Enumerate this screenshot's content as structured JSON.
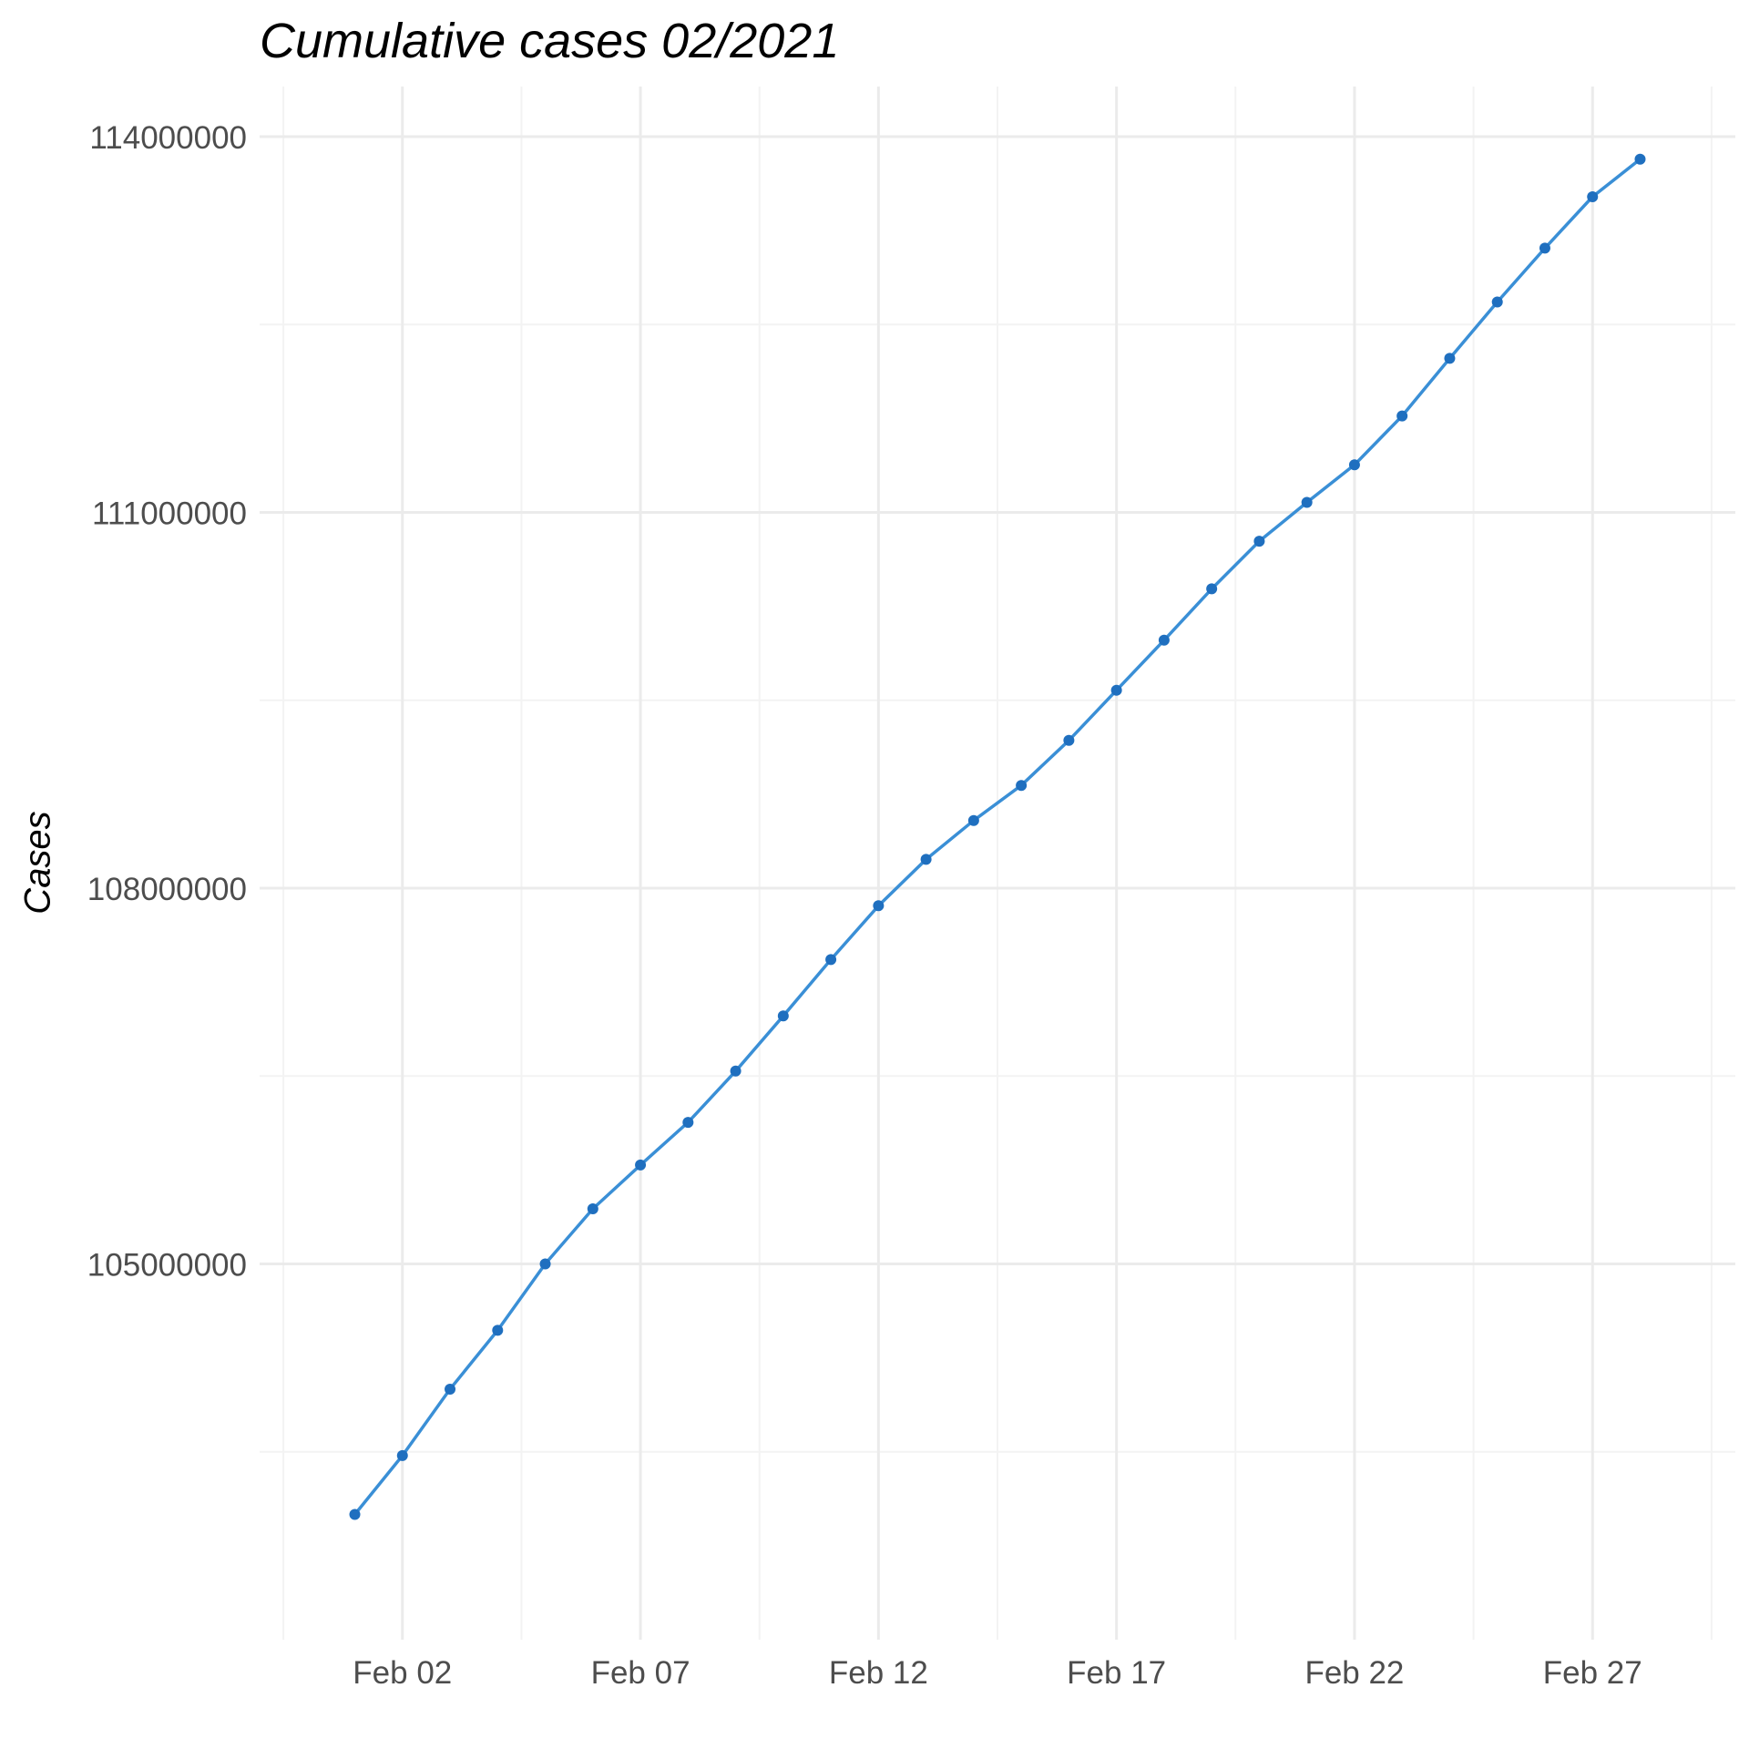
{
  "chart_data": {
    "type": "line",
    "title": "Cumulative cases 02/2021",
    "xlabel": "",
    "ylabel": "Cases",
    "x": [
      "2021-02-01",
      "2021-02-02",
      "2021-02-03",
      "2021-02-04",
      "2021-02-05",
      "2021-02-06",
      "2021-02-07",
      "2021-02-08",
      "2021-02-09",
      "2021-02-10",
      "2021-02-11",
      "2021-02-12",
      "2021-02-13",
      "2021-02-14",
      "2021-02-15",
      "2021-02-16",
      "2021-02-17",
      "2021-02-18",
      "2021-02-19",
      "2021-02-20",
      "2021-02-21",
      "2021-02-22",
      "2021-02-23",
      "2021-02-24",
      "2021-02-25",
      "2021-02-26",
      "2021-02-27",
      "2021-02-28"
    ],
    "series": [
      {
        "name": "",
        "values": [
          103000000,
          103470000,
          104000000,
          104470000,
          105000000,
          105440000,
          105790000,
          106130000,
          106540000,
          106980000,
          107430000,
          107860000,
          108230000,
          108540000,
          108820000,
          109180000,
          109580000,
          109980000,
          110390000,
          110770000,
          111080000,
          111380000,
          111770000,
          112230000,
          112680000,
          113110000,
          113520000,
          113820000
        ]
      }
    ],
    "xlim": [
      "2021-01-30",
      "2021-03-02"
    ],
    "ylim": [
      102000000,
      114400000
    ],
    "y_ticks": [
      105000000,
      108000000,
      111000000,
      114000000
    ],
    "y_tick_labels": [
      "105000000",
      "108000000",
      "111000000",
      "114000000"
    ],
    "x_ticks": [
      "2021-02-02",
      "2021-02-07",
      "2021-02-12",
      "2021-02-17",
      "2021-02-22",
      "2021-02-27"
    ],
    "x_tick_labels": [
      "Feb 02",
      "Feb 07",
      "Feb 12",
      "Feb 17",
      "Feb 22",
      "Feb 27"
    ],
    "grid": true,
    "legend": "none",
    "colors": {
      "line": "#3a8fd6",
      "points": "#1f6fbf",
      "grid_major": "#ebebeb",
      "grid_minor": "#f3f3f3",
      "tick_text": "#4d4d4d"
    }
  }
}
